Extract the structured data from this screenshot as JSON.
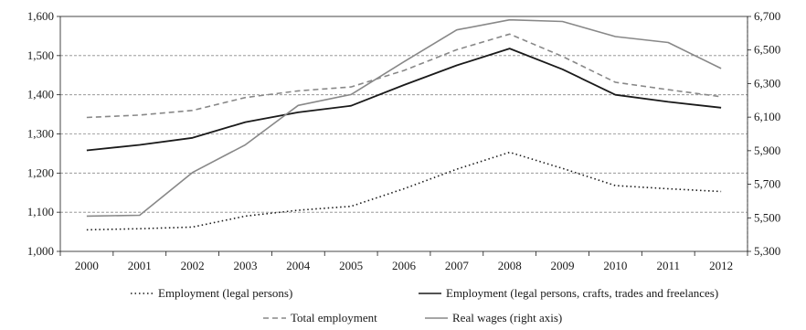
{
  "chart_data": {
    "type": "line",
    "title": "",
    "xlabel": "",
    "ylabel": "",
    "y2label": "",
    "x": [
      "2000",
      "2001",
      "2002",
      "2003",
      "2004",
      "2005",
      "2006",
      "2007",
      "2008",
      "2009",
      "2010",
      "2011",
      "2012"
    ],
    "ylim": [
      1000,
      1600
    ],
    "y2lim": [
      5300,
      6700
    ],
    "yticks": [
      "1,000",
      "1,100",
      "1,200",
      "1,300",
      "1,400",
      "1,500",
      "1,600"
    ],
    "y2ticks": [
      "5,300",
      "5,500",
      "5,700",
      "5,900",
      "6,100",
      "6,300",
      "6,500",
      "6,700"
    ],
    "grid": true,
    "legend_position": "bottom",
    "series": [
      {
        "name": "Employment (legal persons)",
        "axis": "left",
        "style": "dotted",
        "color": "#1a1a1a",
        "values": [
          1055,
          1058,
          1062,
          1090,
          1105,
          1115,
          1160,
          1210,
          1253,
          1212,
          1168,
          1160,
          1153
        ]
      },
      {
        "name": "Employment (legal persons, crafts, trades and freelances)",
        "axis": "left",
        "style": "solid",
        "color": "#1a1a1a",
        "values": [
          1258,
          1272,
          1290,
          1330,
          1355,
          1372,
          1425,
          1475,
          1518,
          1465,
          1400,
          1382,
          1367
        ]
      },
      {
        "name": "Total employment",
        "axis": "left",
        "style": "dashed",
        "color": "#888888",
        "values": [
          1342,
          1348,
          1360,
          1393,
          1410,
          1420,
          1462,
          1515,
          1555,
          1498,
          1432,
          1413,
          1395
        ]
      },
      {
        "name": "Real wages (right axis)",
        "axis": "right",
        "style": "solid",
        "color": "#888888",
        "values": [
          5510,
          5515,
          5770,
          5935,
          6170,
          6235,
          6430,
          6620,
          6680,
          6670,
          6580,
          6545,
          6390
        ]
      }
    ]
  }
}
